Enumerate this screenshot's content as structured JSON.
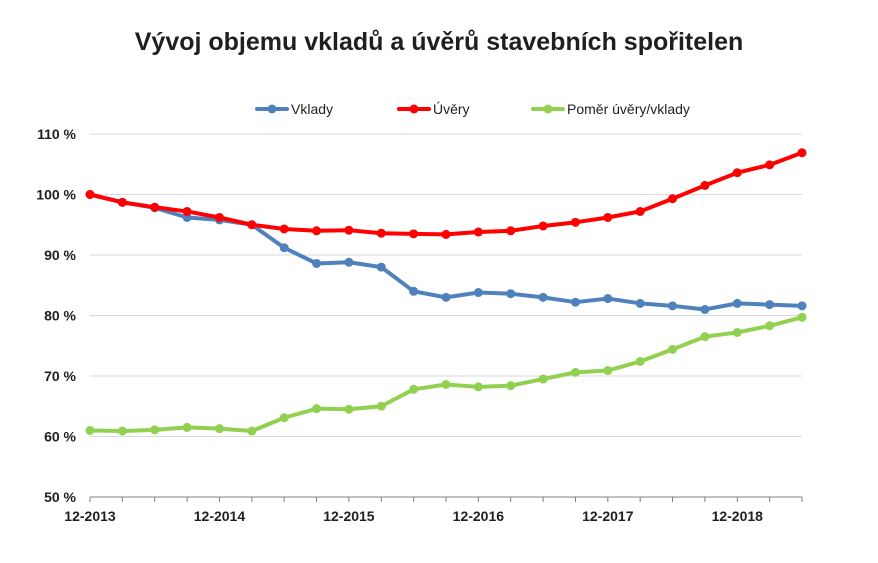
{
  "chart_data": {
    "type": "line",
    "title": "Vývoj objemu vkladů a úvěrů stavebních spořitelen",
    "ylim": [
      50,
      110
    ],
    "y_ticks": [
      "50 %",
      "60 %",
      "70 %",
      "80 %",
      "90 %",
      "100 %",
      "110 %"
    ],
    "y_tick_values": [
      50,
      60,
      70,
      80,
      90,
      100,
      110
    ],
    "x_tick_labels": [
      "12-2013",
      "12-2014",
      "12-2015",
      "12-2016",
      "12-2017",
      "12-2018"
    ],
    "x": [
      "12-2013",
      "03-2014",
      "06-2014",
      "09-2014",
      "12-2014",
      "03-2015",
      "06-2015",
      "09-2015",
      "12-2015",
      "03-2016",
      "06-2016",
      "09-2016",
      "12-2016",
      "03-2017",
      "06-2017",
      "09-2017",
      "12-2017",
      "03-2018",
      "06-2018",
      "09-2018",
      "12-2018",
      "03-2019",
      "06-2019"
    ],
    "grid": "horizontal",
    "legend_position": "top",
    "series": [
      {
        "name": "Vklady",
        "color": "#4f81bd",
        "values": [
          100,
          98.7,
          97.8,
          96.2,
          95.8,
          95.0,
          91.2,
          88.6,
          88.8,
          88.0,
          84.0,
          83.0,
          83.8,
          83.6,
          83.0,
          82.2,
          82.8,
          82.0,
          81.6,
          81.0,
          82.0,
          81.8,
          81.6
        ]
      },
      {
        "name": "Úvěry",
        "color": "#ff0000",
        "values": [
          100,
          98.7,
          97.9,
          97.2,
          96.2,
          95.0,
          94.3,
          94.0,
          94.1,
          93.6,
          93.5,
          93.4,
          93.8,
          94.0,
          94.8,
          95.4,
          96.2,
          97.2,
          99.3,
          101.5,
          103.6,
          104.9,
          106.9
        ]
      },
      {
        "name": "Poměr úvěry/vklady",
        "color": "#92d050",
        "values": [
          61.0,
          60.9,
          61.1,
          61.5,
          61.3,
          60.9,
          63.1,
          64.6,
          64.5,
          65.0,
          67.8,
          68.6,
          68.2,
          68.4,
          69.5,
          70.6,
          70.9,
          72.4,
          74.4,
          76.5,
          77.2,
          78.3,
          79.7
        ]
      }
    ]
  }
}
